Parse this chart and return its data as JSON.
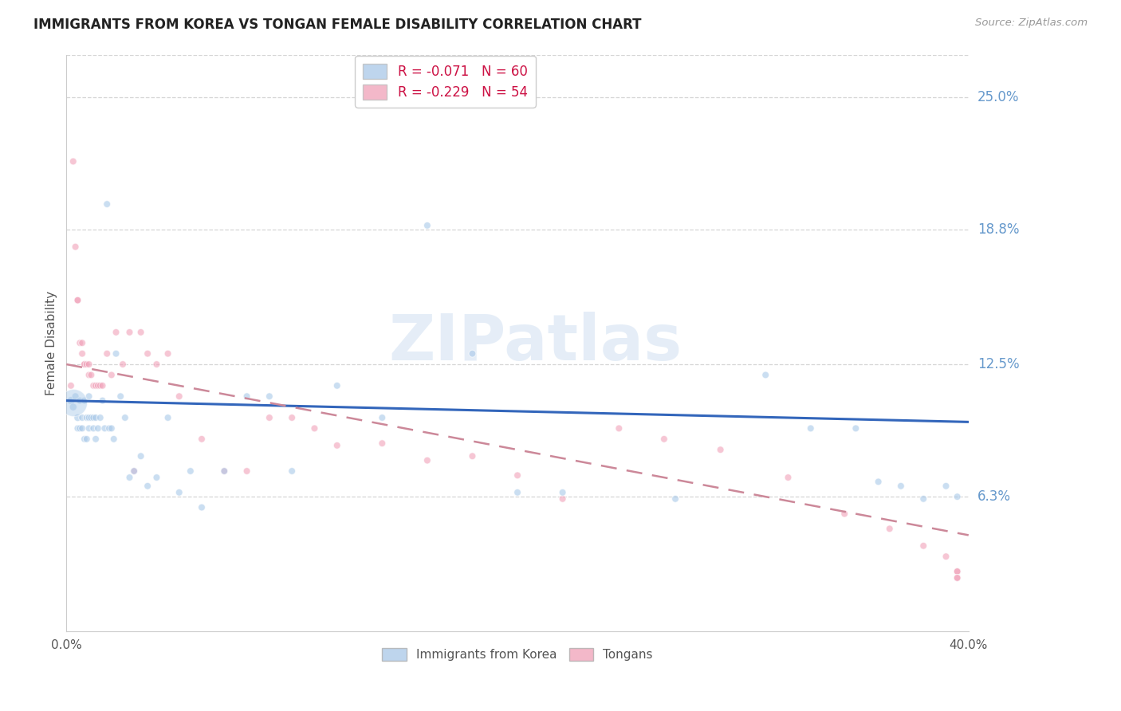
{
  "title": "IMMIGRANTS FROM KOREA VS TONGAN FEMALE DISABILITY CORRELATION CHART",
  "source": "Source: ZipAtlas.com",
  "ylabel": "Female Disability",
  "right_yticks": [
    "25.0%",
    "18.8%",
    "12.5%",
    "6.3%"
  ],
  "right_ytick_vals": [
    0.25,
    0.188,
    0.125,
    0.063
  ],
  "watermark": "ZIPatlas",
  "legend_series": [
    "Immigrants from Korea",
    "Tongans"
  ],
  "korea_color": "#a8c8e8",
  "tongan_color": "#f0a0b8",
  "korea_line_color": "#3366bb",
  "tongan_line_color": "#cc8899",
  "background_color": "#ffffff",
  "grid_color": "#cccccc",
  "title_fontsize": 12,
  "axis_label_fontsize": 11,
  "tick_fontsize": 11,
  "right_tick_color": "#6699cc",
  "xlim": [
    0.0,
    0.4
  ],
  "ylim": [
    0.0,
    0.27
  ],
  "korea_line_x": [
    0.0,
    0.4
  ],
  "korea_line_y": [
    0.108,
    0.098
  ],
  "tongan_line_x": [
    0.0,
    0.4
  ],
  "tongan_line_y": [
    0.125,
    0.045
  ],
  "korea_scatter_x": [
    0.002,
    0.003,
    0.004,
    0.005,
    0.005,
    0.006,
    0.006,
    0.007,
    0.007,
    0.008,
    0.008,
    0.009,
    0.009,
    0.01,
    0.01,
    0.01,
    0.011,
    0.012,
    0.012,
    0.013,
    0.013,
    0.014,
    0.015,
    0.016,
    0.017,
    0.018,
    0.019,
    0.02,
    0.021,
    0.022,
    0.024,
    0.026,
    0.028,
    0.03,
    0.033,
    0.036,
    0.04,
    0.045,
    0.05,
    0.055,
    0.06,
    0.07,
    0.08,
    0.09,
    0.1,
    0.12,
    0.14,
    0.16,
    0.18,
    0.2,
    0.22,
    0.27,
    0.31,
    0.33,
    0.35,
    0.36,
    0.37,
    0.38,
    0.39,
    0.395
  ],
  "korea_scatter_y": [
    0.108,
    0.105,
    0.11,
    0.1,
    0.095,
    0.108,
    0.095,
    0.1,
    0.095,
    0.108,
    0.09,
    0.1,
    0.09,
    0.11,
    0.1,
    0.095,
    0.1,
    0.1,
    0.095,
    0.1,
    0.09,
    0.095,
    0.1,
    0.108,
    0.095,
    0.2,
    0.095,
    0.095,
    0.09,
    0.13,
    0.11,
    0.1,
    0.072,
    0.075,
    0.082,
    0.068,
    0.072,
    0.1,
    0.065,
    0.075,
    0.058,
    0.075,
    0.11,
    0.11,
    0.075,
    0.115,
    0.1,
    0.19,
    0.13,
    0.065,
    0.065,
    0.062,
    0.12,
    0.095,
    0.095,
    0.07,
    0.068,
    0.062,
    0.068,
    0.063
  ],
  "korea_scatter_sizes": [
    50,
    45,
    40,
    45,
    40,
    40,
    40,
    40,
    40,
    40,
    40,
    40,
    40,
    40,
    40,
    40,
    40,
    40,
    40,
    40,
    40,
    40,
    40,
    40,
    40,
    40,
    40,
    40,
    40,
    40,
    40,
    40,
    40,
    40,
    40,
    40,
    40,
    40,
    40,
    40,
    40,
    40,
    40,
    40,
    40,
    40,
    40,
    40,
    40,
    40,
    40,
    40,
    40,
    40,
    40,
    40,
    40,
    40,
    40,
    40
  ],
  "tongan_scatter_x": [
    0.002,
    0.003,
    0.004,
    0.005,
    0.005,
    0.006,
    0.007,
    0.007,
    0.008,
    0.008,
    0.009,
    0.01,
    0.01,
    0.011,
    0.012,
    0.013,
    0.014,
    0.015,
    0.016,
    0.018,
    0.02,
    0.022,
    0.025,
    0.028,
    0.03,
    0.033,
    0.036,
    0.04,
    0.045,
    0.05,
    0.06,
    0.07,
    0.08,
    0.09,
    0.1,
    0.11,
    0.12,
    0.14,
    0.16,
    0.18,
    0.2,
    0.22,
    0.245,
    0.265,
    0.29,
    0.32,
    0.345,
    0.365,
    0.38,
    0.39,
    0.395,
    0.395,
    0.395,
    0.395
  ],
  "tongan_scatter_y": [
    0.115,
    0.22,
    0.18,
    0.155,
    0.155,
    0.135,
    0.135,
    0.13,
    0.125,
    0.125,
    0.125,
    0.125,
    0.12,
    0.12,
    0.115,
    0.115,
    0.115,
    0.115,
    0.115,
    0.13,
    0.12,
    0.14,
    0.125,
    0.14,
    0.075,
    0.14,
    0.13,
    0.125,
    0.13,
    0.11,
    0.09,
    0.075,
    0.075,
    0.1,
    0.1,
    0.095,
    0.087,
    0.088,
    0.08,
    0.082,
    0.073,
    0.062,
    0.095,
    0.09,
    0.085,
    0.072,
    0.055,
    0.048,
    0.04,
    0.035,
    0.028,
    0.028,
    0.025,
    0.025
  ],
  "tongan_scatter_sizes": [
    40,
    40,
    40,
    40,
    40,
    40,
    40,
    40,
    40,
    40,
    40,
    40,
    40,
    40,
    40,
    40,
    40,
    40,
    40,
    40,
    40,
    40,
    40,
    40,
    40,
    40,
    40,
    40,
    40,
    40,
    40,
    40,
    40,
    40,
    40,
    40,
    40,
    40,
    40,
    40,
    40,
    40,
    40,
    40,
    40,
    40,
    40,
    40,
    40,
    40,
    40,
    40,
    40,
    40
  ],
  "big_korea_x": [
    0.003
  ],
  "big_korea_y": [
    0.107
  ],
  "big_korea_size": [
    600
  ]
}
